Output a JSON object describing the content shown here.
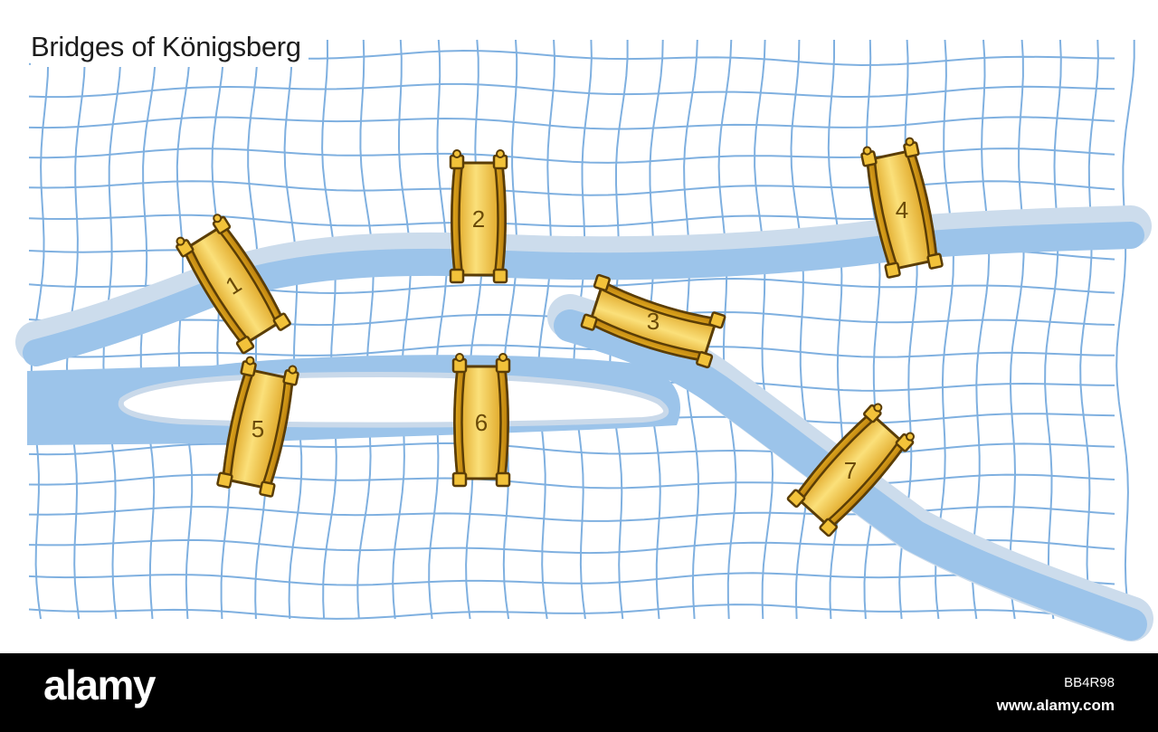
{
  "title": "Bridges of Königsberg",
  "bridges": [
    {
      "label": "1"
    },
    {
      "label": "2"
    },
    {
      "label": "3"
    },
    {
      "label": "4"
    },
    {
      "label": "5"
    },
    {
      "label": "6"
    },
    {
      "label": "7"
    }
  ],
  "footer": {
    "brand": "alamy",
    "image_id": "BB4R98",
    "url": "www.alamy.com"
  },
  "colors": {
    "grid": "#7fb0e0",
    "river": "#9cc4ea",
    "bank_shadow": "#c9d9ea",
    "bridge_fill": "#f2c23a",
    "bridge_outline": "#5a3d06",
    "footer_bg": "#000000"
  }
}
